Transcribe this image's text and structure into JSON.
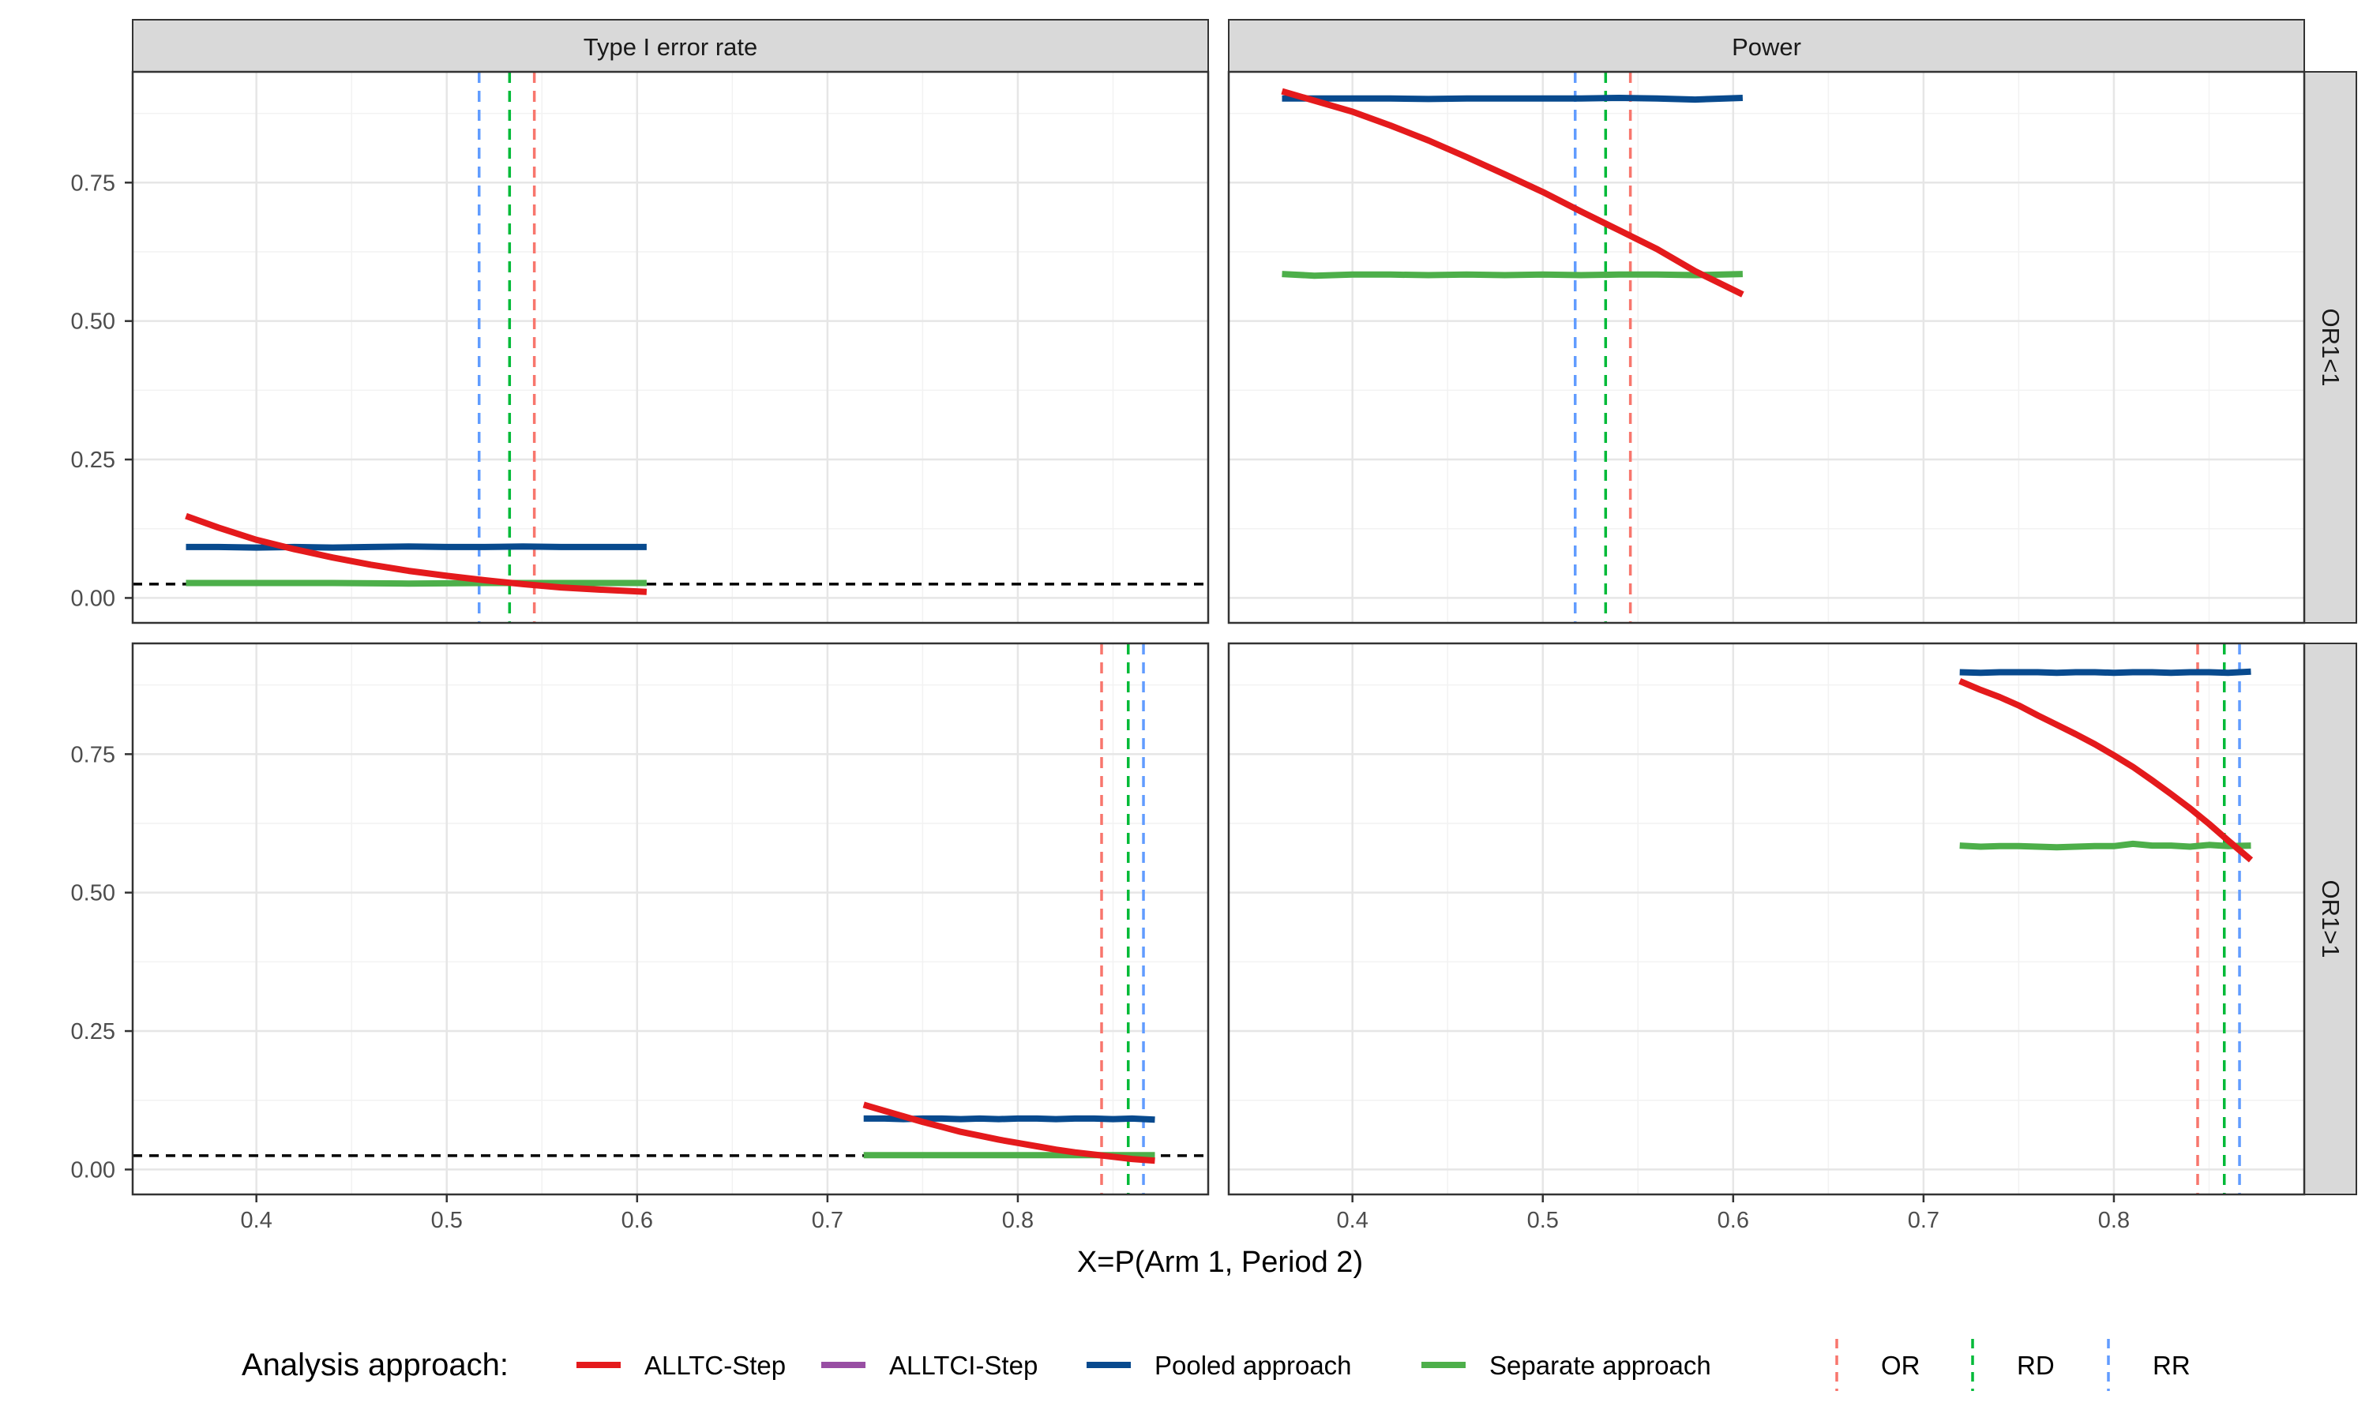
{
  "chart_data": {
    "type": "line",
    "xlabel": "X=P(Arm 1, Period 2)",
    "ylabel": "",
    "xlim": [
      0.335,
      0.9
    ],
    "ylim": [
      -0.045,
      0.95
    ],
    "x_ticks": [
      0.4,
      0.5,
      0.6,
      0.7,
      0.8
    ],
    "x_tick_labels": [
      "0.4",
      "0.5",
      "0.6",
      "0.7",
      "0.8"
    ],
    "y_ticks": [
      0,
      0.25,
      0.5,
      0.75
    ],
    "y_tick_labels": [
      "0.00",
      "0.25",
      "0.50",
      "0.75"
    ],
    "grid": true,
    "column_strips": [
      "Type I error rate",
      "Power"
    ],
    "row_strips": [
      "OR1<1",
      "OR1>1"
    ],
    "alpha_reference": 0.025,
    "legend": {
      "position": "bottom",
      "approach_title": "Analysis approach:",
      "approach_entries": [
        {
          "name": "ALLTC-Step",
          "color": "#E41A1C"
        },
        {
          "name": "ALLTCI-Step",
          "color": "#984EA3"
        },
        {
          "name": "Pooled approach",
          "color": "#084A8E"
        },
        {
          "name": "Separate approach",
          "color": "#4DAF4A"
        }
      ],
      "measure_entries": [
        {
          "name": "OR",
          "color": "#F8766D"
        },
        {
          "name": "RD",
          "color": "#00BA38"
        },
        {
          "name": "RR",
          "color": "#619CFF"
        }
      ]
    },
    "panels": [
      {
        "column": "Type I error rate",
        "row": "OR1<1",
        "alpha_line": true,
        "vlines": {
          "OR": 0.546,
          "RD": 0.533,
          "RR": 0.517
        },
        "series": [
          {
            "name": "Pooled approach",
            "x": [
              0.363,
              0.38,
              0.4,
              0.42,
              0.44,
              0.46,
              0.48,
              0.5,
              0.52,
              0.54,
              0.56,
              0.58,
              0.605
            ],
            "y": [
              0.092,
              0.092,
              0.091,
              0.092,
              0.091,
              0.092,
              0.093,
              0.092,
              0.092,
              0.093,
              0.092,
              0.092,
              0.092
            ]
          },
          {
            "name": "Separate approach",
            "x": [
              0.363,
              0.4,
              0.44,
              0.48,
              0.52,
              0.56,
              0.605
            ],
            "y": [
              0.027,
              0.027,
              0.027,
              0.026,
              0.027,
              0.027,
              0.027
            ]
          },
          {
            "name": "ALLTC-Step",
            "x": [
              0.363,
              0.38,
              0.4,
              0.42,
              0.44,
              0.46,
              0.48,
              0.5,
              0.52,
              0.54,
              0.56,
              0.58,
              0.605
            ],
            "y": [
              0.148,
              0.127,
              0.105,
              0.088,
              0.073,
              0.06,
              0.049,
              0.04,
              0.032,
              0.025,
              0.019,
              0.015,
              0.011
            ]
          }
        ]
      },
      {
        "column": "Power",
        "row": "OR1<1",
        "alpha_line": false,
        "vlines": {
          "OR": 0.546,
          "RD": 0.533,
          "RR": 0.517
        },
        "series": [
          {
            "name": "Pooled approach",
            "x": [
              0.363,
              0.38,
              0.4,
              0.42,
              0.44,
              0.46,
              0.48,
              0.5,
              0.52,
              0.54,
              0.56,
              0.58,
              0.605
            ],
            "y": [
              0.902,
              0.902,
              0.902,
              0.902,
              0.901,
              0.902,
              0.902,
              0.902,
              0.902,
              0.903,
              0.902,
              0.9,
              0.903
            ]
          },
          {
            "name": "Separate approach",
            "x": [
              0.363,
              0.38,
              0.4,
              0.42,
              0.44,
              0.46,
              0.48,
              0.5,
              0.52,
              0.54,
              0.56,
              0.58,
              0.605
            ],
            "y": [
              0.585,
              0.582,
              0.584,
              0.584,
              0.583,
              0.584,
              0.583,
              0.584,
              0.583,
              0.584,
              0.584,
              0.583,
              0.585
            ]
          },
          {
            "name": "ALLTC-Step",
            "x": [
              0.363,
              0.38,
              0.4,
              0.42,
              0.44,
              0.46,
              0.48,
              0.5,
              0.52,
              0.54,
              0.56,
              0.58,
              0.605
            ],
            "y": [
              0.915,
              0.898,
              0.878,
              0.853,
              0.826,
              0.796,
              0.765,
              0.733,
              0.698,
              0.664,
              0.63,
              0.59,
              0.548
            ]
          }
        ]
      },
      {
        "column": "Type I error rate",
        "row": "OR1>1",
        "alpha_line": true,
        "vlines": {
          "OR": 0.844,
          "RD": 0.858,
          "RR": 0.866
        },
        "series": [
          {
            "name": "Pooled approach",
            "x": [
              0.719,
              0.73,
              0.74,
              0.75,
              0.76,
              0.77,
              0.78,
              0.79,
              0.8,
              0.81,
              0.82,
              0.83,
              0.84,
              0.85,
              0.86,
              0.872
            ],
            "y": [
              0.092,
              0.092,
              0.091,
              0.092,
              0.092,
              0.091,
              0.092,
              0.091,
              0.092,
              0.092,
              0.091,
              0.092,
              0.092,
              0.091,
              0.092,
              0.09
            ]
          },
          {
            "name": "Separate approach",
            "x": [
              0.719,
              0.76,
              0.8,
              0.84,
              0.872
            ],
            "y": [
              0.026,
              0.026,
              0.026,
              0.026,
              0.026
            ]
          },
          {
            "name": "ALLTC-Step",
            "x": [
              0.719,
              0.73,
              0.74,
              0.75,
              0.76,
              0.77,
              0.78,
              0.79,
              0.8,
              0.81,
              0.82,
              0.83,
              0.84,
              0.85,
              0.86,
              0.872
            ],
            "y": [
              0.117,
              0.106,
              0.096,
              0.086,
              0.077,
              0.068,
              0.061,
              0.054,
              0.048,
              0.042,
              0.036,
              0.031,
              0.027,
              0.023,
              0.019,
              0.016
            ]
          }
        ]
      },
      {
        "column": "Power",
        "row": "OR1>1",
        "alpha_line": false,
        "vlines": {
          "OR": 0.844,
          "RD": 0.858,
          "RR": 0.866
        },
        "series": [
          {
            "name": "Pooled approach",
            "x": [
              0.719,
              0.73,
              0.74,
              0.75,
              0.76,
              0.77,
              0.78,
              0.79,
              0.8,
              0.81,
              0.82,
              0.83,
              0.84,
              0.85,
              0.86,
              0.872
            ],
            "y": [
              0.898,
              0.897,
              0.898,
              0.898,
              0.898,
              0.897,
              0.898,
              0.898,
              0.897,
              0.898,
              0.898,
              0.897,
              0.898,
              0.898,
              0.897,
              0.899
            ]
          },
          {
            "name": "Separate approach",
            "x": [
              0.719,
              0.73,
              0.74,
              0.75,
              0.76,
              0.77,
              0.78,
              0.79,
              0.8,
              0.81,
              0.82,
              0.83,
              0.84,
              0.85,
              0.86,
              0.872
            ],
            "y": [
              0.585,
              0.583,
              0.584,
              0.584,
              0.583,
              0.582,
              0.583,
              0.584,
              0.584,
              0.588,
              0.585,
              0.585,
              0.583,
              0.586,
              0.584,
              0.585
            ]
          },
          {
            "name": "ALLTC-Step",
            "x": [
              0.719,
              0.73,
              0.74,
              0.75,
              0.76,
              0.77,
              0.78,
              0.79,
              0.8,
              0.81,
              0.82,
              0.83,
              0.84,
              0.85,
              0.86,
              0.872
            ],
            "y": [
              0.882,
              0.866,
              0.853,
              0.838,
              0.82,
              0.803,
              0.786,
              0.768,
              0.748,
              0.727,
              0.703,
              0.678,
              0.652,
              0.624,
              0.594,
              0.559
            ]
          }
        ]
      }
    ]
  }
}
